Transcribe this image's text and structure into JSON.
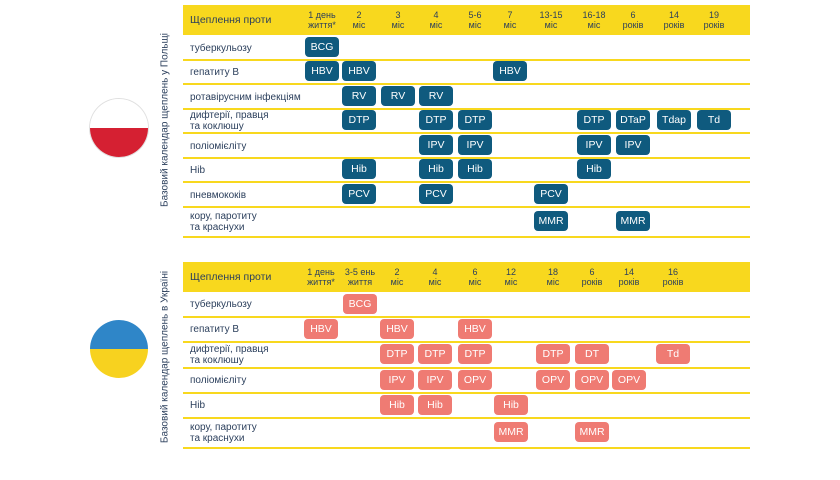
{
  "poland": {
    "side_label": "Базовий календар щеплень у Польщі",
    "flag_colors": [
      "#ffffff",
      "#d52032"
    ],
    "badge_color": "#0f5a7e",
    "header": "Щеплення проти",
    "columns": [
      "1 день\nжиття*",
      "2\nміс",
      "3\nміс",
      "4\nміс",
      "5-6\nміс",
      "7\nміс",
      "13-15\nміс",
      "16-18\nміс",
      "6\nроків",
      "14\nроків",
      "19\nроків"
    ],
    "rows": [
      {
        "label": "туберкульозу",
        "vaccines": [
          {
            "col": 0,
            "text": "BCG"
          }
        ]
      },
      {
        "label": "гепатиту В",
        "vaccines": [
          {
            "col": 0,
            "text": "HBV"
          },
          {
            "col": 1,
            "text": "HBV"
          },
          {
            "col": 5,
            "text": "HBV"
          }
        ]
      },
      {
        "label": "ротавірусним інфекціям",
        "vaccines": [
          {
            "col": 1,
            "text": "RV"
          },
          {
            "col": 2,
            "text": "RV"
          },
          {
            "col": 3,
            "text": "RV"
          }
        ]
      },
      {
        "label": "дифтерії, правця\nта коклюшу",
        "vaccines": [
          {
            "col": 1,
            "text": "DTP"
          },
          {
            "col": 3,
            "text": "DTP"
          },
          {
            "col": 4,
            "text": "DTP"
          },
          {
            "col": 7,
            "text": "DTP"
          },
          {
            "col": 8,
            "text": "DTaP"
          },
          {
            "col": 9,
            "text": "Tdap"
          },
          {
            "col": 10,
            "text": "Td"
          }
        ]
      },
      {
        "label": "поліомієліту",
        "vaccines": [
          {
            "col": 3,
            "text": "IPV"
          },
          {
            "col": 4,
            "text": "IPV"
          },
          {
            "col": 7,
            "text": "IPV"
          },
          {
            "col": 8,
            "text": "IPV"
          }
        ]
      },
      {
        "label": "Hib",
        "vaccines": [
          {
            "col": 1,
            "text": "Hib"
          },
          {
            "col": 3,
            "text": "Hib"
          },
          {
            "col": 4,
            "text": "Hib"
          },
          {
            "col": 7,
            "text": "Hib"
          }
        ]
      },
      {
        "label": "пневмококів",
        "vaccines": [
          {
            "col": 1,
            "text": "PCV"
          },
          {
            "col": 3,
            "text": "PCV"
          },
          {
            "col": 6,
            "text": "PCV"
          }
        ]
      },
      {
        "label": "кору, паротиту\nта краснухи",
        "vaccines": [
          {
            "col": 6,
            "text": "MMR"
          },
          {
            "col": 8,
            "text": "MMR"
          }
        ]
      }
    ]
  },
  "ukraine": {
    "side_label": "Базовий календар щеплень в Україні",
    "flag_colors": [
      "#2f86c8",
      "#f7d21f"
    ],
    "badge_color": "#ef7b73",
    "header": "Щеплення проти",
    "columns": [
      "1 день\nжиття*",
      "3-5 ень\nжиття",
      "2\nміс",
      "4\nміс",
      "6\nміс",
      "12\nміс",
      "18\nміс",
      "6\nроків",
      "14\nроків",
      "16\nроків"
    ],
    "rows": [
      {
        "label": "туберкульозу",
        "vaccines": [
          {
            "col": 1,
            "text": "BCG"
          }
        ]
      },
      {
        "label": "гепатиту В",
        "vaccines": [
          {
            "col": 0,
            "text": "HBV"
          },
          {
            "col": 2,
            "text": "HBV"
          },
          {
            "col": 4,
            "text": "HBV"
          }
        ]
      },
      {
        "label": "дифтерії, правця\nта коклюшу",
        "vaccines": [
          {
            "col": 2,
            "text": "DTP"
          },
          {
            "col": 3,
            "text": "DTP"
          },
          {
            "col": 4,
            "text": "DTP"
          },
          {
            "col": 6,
            "text": "DTP"
          },
          {
            "col": 7,
            "text": "DT"
          },
          {
            "col": 9,
            "text": "Td"
          }
        ]
      },
      {
        "label": "поліомієліту",
        "vaccines": [
          {
            "col": 2,
            "text": "IPV"
          },
          {
            "col": 3,
            "text": "IPV"
          },
          {
            "col": 4,
            "text": "OPV"
          },
          {
            "col": 6,
            "text": "OPV"
          },
          {
            "col": 7,
            "text": "OPV"
          },
          {
            "col": 8,
            "text": "OPV"
          }
        ]
      },
      {
        "label": "Hib",
        "vaccines": [
          {
            "col": 2,
            "text": "Hib"
          },
          {
            "col": 3,
            "text": "Hib"
          },
          {
            "col": 5,
            "text": "Hib"
          }
        ]
      },
      {
        "label": "кору, паротиту\nта краснухи",
        "vaccines": [
          {
            "col": 5,
            "text": "MMR"
          },
          {
            "col": 7,
            "text": "MMR"
          }
        ]
      }
    ]
  }
}
